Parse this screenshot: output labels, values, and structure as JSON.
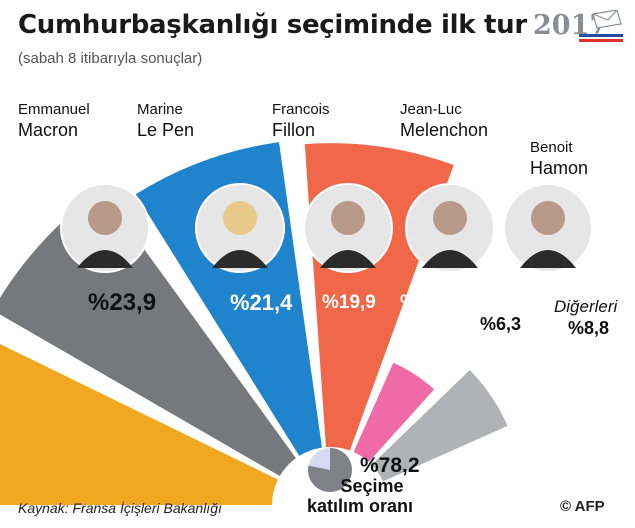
{
  "title": "Cumhurbaşkanlığı seçiminde ilk tur",
  "subtitle": "(sabah 8 itibarıyla sonuçlar)",
  "logo": {
    "year": "2017"
  },
  "source": "Kaynak: Fransa İçişleri Bakanlığı",
  "credit": "© AFP",
  "colors": {
    "macron": "#f0a820",
    "lepen": "#76787b",
    "fillon": "#1f84cc",
    "melenchon": "#f0674a",
    "hamon": "#f06aa8",
    "others": "#b0b2b5"
  },
  "chart_data": {
    "type": "bar",
    "title": "Cumhurbaşkanlığı seçiminde ilk tur",
    "subtitle": "(sabah 8 itibarıyla sonuçlar)",
    "categories": [
      "Emmanuel Macron",
      "Marine Le Pen",
      "Francois Fillon",
      "Jean-Luc Melenchon",
      "Benoit Hamon",
      "Diğerleri"
    ],
    "candidates": [
      {
        "first": "Emmanuel",
        "last": "Macron",
        "value": 23.9,
        "label": "%23,9",
        "color": "#f0a820"
      },
      {
        "first": "Marine",
        "last": "Le Pen",
        "value": 21.4,
        "label": "%21,4",
        "color": "#76787b"
      },
      {
        "first": "Francois",
        "last": "Fillon",
        "value": 19.9,
        "label": "%19,9",
        "color": "#1f84cc"
      },
      {
        "first": "Jean-Luc",
        "last": "Melenchon",
        "value": 19.6,
        "label": "%19,6",
        "color": "#f0674a"
      },
      {
        "first": "Benoit",
        "last": "Hamon",
        "value": 6.3,
        "label": "%6,3",
        "color": "#f06aa8"
      },
      {
        "first": "Diğerleri",
        "last": "",
        "value": 8.8,
        "label": "%8,8",
        "color": "#b0b2b5"
      }
    ],
    "values": [
      23.9,
      21.4,
      19.9,
      19.6,
      6.3,
      8.8
    ],
    "turnout": {
      "value": 78.2,
      "label": "%78,2",
      "caption_line1": "Seçime",
      "caption_line2": "katılım oranı"
    }
  }
}
